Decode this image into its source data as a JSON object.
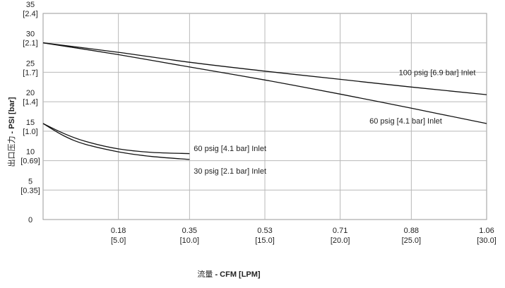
{
  "chart_data": {
    "type": "line",
    "title": "",
    "xlabel": {
      "prefix": "流量",
      "main": " - CFM [LPM]"
    },
    "ylabel": {
      "prefix": "出口压力",
      "main": " - PSI [bar]"
    },
    "xlim": [
      0,
      1.06
    ],
    "ylim": [
      0,
      35
    ],
    "grid": true,
    "x_ticks": [
      {
        "value": 0.18,
        "label": "0.18",
        "sub": "[5.0]"
      },
      {
        "value": 0.35,
        "label": "0.35",
        "sub": "[10.0]"
      },
      {
        "value": 0.53,
        "label": "0.53",
        "sub": "[15.0]"
      },
      {
        "value": 0.71,
        "label": "0.71",
        "sub": "[20.0]"
      },
      {
        "value": 0.88,
        "label": "0.88",
        "sub": "[25.0]"
      },
      {
        "value": 1.06,
        "label": "1.06",
        "sub": "[30.0]"
      }
    ],
    "y_ticks": [
      {
        "value": 0,
        "label": "0",
        "sub": ""
      },
      {
        "value": 5,
        "label": "5",
        "sub": "[0.35]"
      },
      {
        "value": 10,
        "label": "10",
        "sub": "[0.69]"
      },
      {
        "value": 15,
        "label": "15",
        "sub": "[1.0]"
      },
      {
        "value": 20,
        "label": "20",
        "sub": "[1.4]"
      },
      {
        "value": 25,
        "label": "25",
        "sub": "[1.7]"
      },
      {
        "value": 30,
        "label": "30",
        "sub": "[2.1]"
      },
      {
        "value": 35,
        "label": "35",
        "sub": "[2.4]"
      }
    ],
    "series": [
      {
        "name": "100 psig [6.9 bar] Inlet",
        "x": [
          0,
          0.18,
          0.35,
          0.53,
          0.71,
          0.88,
          1.06
        ],
        "y": [
          30,
          28.4,
          26.7,
          25.2,
          23.8,
          22.5,
          21.2
        ],
        "label_at": [
          0.85,
          24.5
        ]
      },
      {
        "name": "60 psig [4.1 bar] Inlet",
        "x": [
          0,
          0.18,
          0.35,
          0.53,
          0.71,
          0.88,
          1.06
        ],
        "y": [
          30,
          28.0,
          25.9,
          23.7,
          21.3,
          18.9,
          16.3
        ],
        "label_at": [
          0.78,
          16.3
        ]
      },
      {
        "name": "60 psig [4.1 bar] Inlet",
        "x": [
          0,
          0.05,
          0.1,
          0.18,
          0.26,
          0.35
        ],
        "y": [
          16.3,
          14.6,
          13.3,
          12.0,
          11.4,
          11.2
        ],
        "label_at": [
          0.36,
          11.6
        ]
      },
      {
        "name": "30 psig [2.1 bar] Inlet",
        "x": [
          0,
          0.05,
          0.1,
          0.18,
          0.26,
          0.35
        ],
        "y": [
          16.3,
          14.2,
          12.8,
          11.5,
          10.7,
          10.2
        ],
        "label_at": [
          0.36,
          7.8
        ]
      }
    ]
  }
}
